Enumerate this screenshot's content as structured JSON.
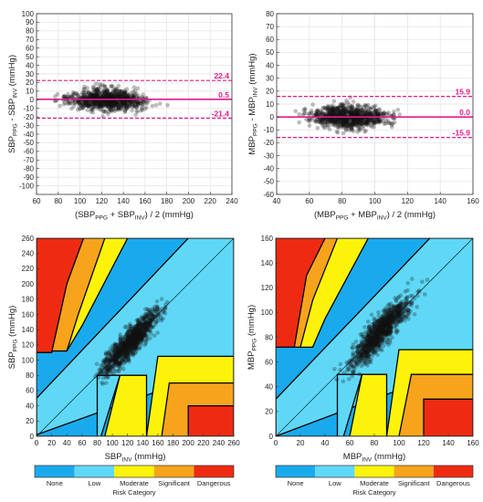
{
  "colors": {
    "none": "#19aaee",
    "low": "#5fd8f7",
    "moderate": "#fdf30a",
    "significant": "#f7a41c",
    "dangerous": "#ee2b12",
    "limit_line": "#e5198a",
    "points": "#111111"
  },
  "colorbar": {
    "labels": [
      "None",
      "Low",
      "Moderate",
      "Significant",
      "Dangerous"
    ],
    "title": "Risk Category"
  },
  "chart_data": [
    {
      "type": "scatter",
      "plot": "bland-altman-sbp",
      "ylabel_main": "SBP",
      "ylabel_sub1": "PPG",
      "ylabel_mid": " - SBP",
      "ylabel_sub2": "INV",
      "ylabel_tail": " (mmHg)",
      "xlabel_main": "(SBP",
      "xlabel_sub1": "PPG",
      "xlabel_mid": " + SBP",
      "xlabel_sub2": "INV",
      "xlabel_tail": ") / 2 (mmHg)",
      "xlim": [
        60,
        240
      ],
      "ylim": [
        -110,
        100
      ],
      "xticks": [
        60,
        80,
        100,
        120,
        140,
        160,
        180,
        200,
        220,
        240
      ],
      "yticks": [
        -100,
        -90,
        -80,
        -70,
        -60,
        -50,
        -40,
        -30,
        -20,
        -10,
        0,
        10,
        20,
        30,
        40,
        50,
        60,
        70,
        80,
        90,
        100
      ],
      "lines": [
        {
          "name": "upper-loa",
          "value": 22.4,
          "label": "22.4"
        },
        {
          "name": "bias",
          "value": 0.5,
          "label": "0.5"
        },
        {
          "name": "lower-loa",
          "value": -21.4,
          "label": "-21.4"
        }
      ],
      "cloud": {
        "center": [
          125,
          0
        ],
        "spread": [
          30,
          11
        ],
        "count": 900
      }
    },
    {
      "type": "scatter",
      "plot": "bland-altman-mbp",
      "ylabel_main": "MBP",
      "ylabel_sub1": "PPG",
      "ylabel_mid": " - MBP",
      "ylabel_sub2": "INV",
      "ylabel_tail": " (mmHg)",
      "xlabel_main": "(MBP",
      "xlabel_sub1": "PPG",
      "xlabel_mid": " + MBP",
      "xlabel_sub2": "INV",
      "xlabel_tail": ") / 2 (mmHg)",
      "xlim": [
        40,
        160
      ],
      "ylim": [
        -60,
        80
      ],
      "xticks": [
        40,
        60,
        80,
        100,
        120,
        140,
        160
      ],
      "yticks": [
        -60,
        -50,
        -40,
        -30,
        -20,
        -10,
        0,
        10,
        20,
        30,
        40,
        50,
        60,
        70,
        80
      ],
      "lines": [
        {
          "name": "upper-loa",
          "value": 15.9,
          "label": "15.9"
        },
        {
          "name": "bias",
          "value": 0.0,
          "label": "0.0"
        },
        {
          "name": "lower-loa",
          "value": -15.9,
          "label": "-15.9"
        }
      ],
      "cloud": {
        "center": [
          85,
          0
        ],
        "spread": [
          20,
          8
        ],
        "count": 900
      }
    },
    {
      "type": "scatter",
      "plot": "error-grid-sbp",
      "ylabel_main": "SBP",
      "ylabel_sub1": "PPG",
      "ylabel_tail": " (mmHg)",
      "xlabel_main": "SBP",
      "xlabel_sub1": "INV",
      "xlabel_tail": " (mmHg)",
      "xlim": [
        0,
        260
      ],
      "ylim": [
        0,
        260
      ],
      "xticks": [
        0,
        20,
        40,
        60,
        80,
        100,
        120,
        140,
        160,
        180,
        200,
        220,
        240,
        260
      ],
      "yticks": [
        0,
        20,
        40,
        60,
        80,
        100,
        120,
        140,
        160,
        180,
        200,
        220,
        240,
        260
      ],
      "zones": [
        {
          "category": "low",
          "points": [
            [
              0,
              0
            ],
            [
              260,
              0
            ],
            [
              260,
              260
            ],
            [
              0,
              260
            ]
          ]
        },
        {
          "category": "none",
          "points": [
            [
              0,
              0
            ],
            [
              260,
              0
            ],
            [
              260,
              95
            ],
            [
              0,
              2
            ],
            [
              0,
              50
            ],
            [
              200,
              260
            ],
            [
              0,
              260
            ]
          ]
        },
        {
          "category": "moderate",
          "points": [
            [
              20,
              112
            ],
            [
              40,
              112
            ],
            [
              60,
              145
            ],
            [
              120,
              260
            ],
            [
              0,
              260
            ],
            [
              0,
              112
            ]
          ]
        },
        {
          "category": "significant",
          "points": [
            [
              0,
              112
            ],
            [
              40,
              112
            ],
            [
              55,
              160
            ],
            [
              90,
              260
            ],
            [
              0,
              260
            ]
          ]
        },
        {
          "category": "dangerous",
          "points": [
            [
              0,
              260
            ],
            [
              0,
              110
            ],
            [
              20,
              110
            ],
            [
              40,
              200
            ],
            [
              62,
              260
            ]
          ]
        },
        {
          "category": "moderate",
          "points": [
            [
              145,
              0
            ],
            [
              260,
              0
            ],
            [
              260,
              105
            ],
            [
              160,
              105
            ]
          ]
        },
        {
          "category": "significant",
          "points": [
            [
              165,
              0
            ],
            [
              260,
              0
            ],
            [
              260,
              70
            ],
            [
              175,
              70
            ]
          ]
        },
        {
          "category": "dangerous",
          "points": [
            [
              200,
              0
            ],
            [
              260,
              0
            ],
            [
              260,
              40
            ],
            [
              200,
              40
            ]
          ]
        },
        {
          "category": "low",
          "points": [
            [
              80,
              0
            ],
            [
              85,
              0
            ],
            [
              110,
              80
            ],
            [
              80,
              80
            ]
          ]
        },
        {
          "category": "moderate",
          "points": [
            [
              90,
              0
            ],
            [
              145,
              0
            ],
            [
              145,
              80
            ],
            [
              110,
              80
            ]
          ]
        }
      ],
      "cloud": {
        "center": [
          125,
          125
        ],
        "spread": [
          30,
          30
        ],
        "count": 1000
      }
    },
    {
      "type": "scatter",
      "plot": "error-grid-mbp",
      "ylabel_main": "MBP",
      "ylabel_sub1": "PPG",
      "ylabel_tail": " (mmHg)",
      "xlabel_main": "MBP",
      "xlabel_sub1": "INV",
      "xlabel_tail": " (mmHg)",
      "xlim": [
        0,
        160
      ],
      "ylim": [
        0,
        160
      ],
      "xticks": [
        0,
        20,
        40,
        60,
        80,
        100,
        120,
        140,
        160
      ],
      "yticks": [
        0,
        20,
        40,
        60,
        80,
        100,
        120,
        140,
        160
      ],
      "zones": [
        {
          "category": "low",
          "points": [
            [
              0,
              0
            ],
            [
              160,
              0
            ],
            [
              160,
              160
            ],
            [
              0,
              160
            ]
          ]
        },
        {
          "category": "none",
          "points": [
            [
              0,
              0
            ],
            [
              160,
              0
            ],
            [
              160,
              60
            ],
            [
              0,
              0
            ],
            [
              0,
              30
            ],
            [
              125,
              160
            ],
            [
              0,
              160
            ]
          ]
        },
        {
          "category": "moderate",
          "points": [
            [
              0,
              72
            ],
            [
              30,
              72
            ],
            [
              40,
              95
            ],
            [
              75,
              160
            ],
            [
              0,
              160
            ]
          ]
        },
        {
          "category": "significant",
          "points": [
            [
              0,
              72
            ],
            [
              20,
              72
            ],
            [
              30,
              110
            ],
            [
              50,
              160
            ],
            [
              0,
              160
            ]
          ]
        },
        {
          "category": "dangerous",
          "points": [
            [
              0,
              160
            ],
            [
              0,
              72
            ],
            [
              15,
              72
            ],
            [
              25,
              130
            ],
            [
              40,
              160
            ]
          ]
        },
        {
          "category": "moderate",
          "points": [
            [
              90,
              0
            ],
            [
              160,
              0
            ],
            [
              160,
              70
            ],
            [
              100,
              70
            ]
          ]
        },
        {
          "category": "significant",
          "points": [
            [
              100,
              0
            ],
            [
              160,
              0
            ],
            [
              160,
              50
            ],
            [
              110,
              50
            ]
          ]
        },
        {
          "category": "dangerous",
          "points": [
            [
              120,
              0
            ],
            [
              160,
              0
            ],
            [
              160,
              30
            ],
            [
              120,
              30
            ]
          ]
        },
        {
          "category": "low",
          "points": [
            [
              50,
              0
            ],
            [
              55,
              0
            ],
            [
              70,
              50
            ],
            [
              50,
              50
            ]
          ]
        },
        {
          "category": "moderate",
          "points": [
            [
              60,
              0
            ],
            [
              90,
              0
            ],
            [
              90,
              50
            ],
            [
              70,
              50
            ]
          ]
        }
      ],
      "cloud": {
        "center": [
          85,
          85
        ],
        "spread": [
          20,
          20
        ],
        "count": 1000
      }
    }
  ]
}
